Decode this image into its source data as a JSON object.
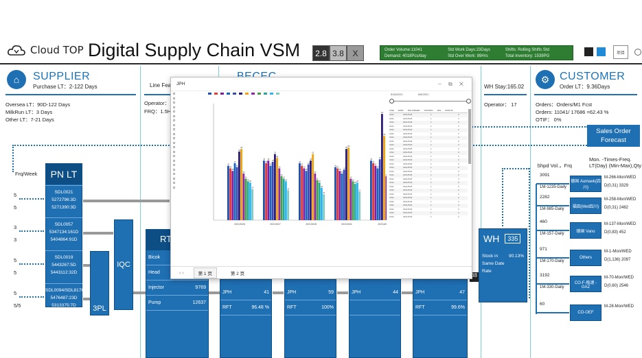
{
  "header": {
    "logo_text": "Cloud TOP",
    "title": "Digital Supply Chain VSM",
    "versions": [
      "2.8",
      "3.8"
    ],
    "close": "X",
    "kpi": [
      [
        "Order Volume:11041",
        "Std Work Days:23Days",
        "Shifts: Rolling Shifts Std"
      ],
      [
        "Demand: 4018Pcs/day",
        "Std Over Work: 89Hrs",
        "Total Inventory: 1539PG"
      ]
    ],
    "menu": "项目"
  },
  "supplier": {
    "title": "SUPPLIER",
    "subtitle": "Purchase LT：2-122 Days",
    "lines": [
      "Oversea LT：90D-122 Days",
      "MilkRun LT：3 Days",
      "Other LT：7-21 Days"
    ]
  },
  "line": {
    "title": "Line Fea",
    "operator": "Operator：",
    "frq": "FRQ：1.5H"
  },
  "becec": {
    "title": "BECEC"
  },
  "wh": {
    "stay": "WH Stay:165.02",
    "operator": "Operator：  17",
    "label": "WH",
    "num": "335",
    "stock": "Stock in Same Date Rate",
    "stock_val": "90.13%"
  },
  "customer": {
    "title": "CUSTOMER",
    "subtitle": "Order LT：9.36Days",
    "lines": [
      "Orders：Orders/M1 Fcst",
      "Orders: 11041/ 17686 =62.43 %",
      "OTIF：  0%"
    ],
    "forecast": "Sales Order Forecast",
    "shpd": "Shpd Vol.，Frq",
    "mon": "Mon. -Times-Freq. LT(Day) (Min-Max),Qty",
    "rows": [
      {
        "vol": "3091",
        "frq": "1M-1235-Daily",
        "box": "德国 Aumaek(四川)",
        "mon": "M-266-Mon/WED",
        "d": "D(0,31) 3329"
      },
      {
        "vol": "2282",
        "frq": "1M-985-Daily",
        "box": "福田(Wet四川)",
        "mon": "M-258-Mon/WED",
        "d": "D(0,31) 2482"
      },
      {
        "vol": "460",
        "frq": "1M-157-Daily",
        "box": "德国 Vano",
        "mon": "M-137-Mon/WED",
        "d": "D(0,83) 452"
      },
      {
        "vol": "971",
        "frq": "1M-170-Daily",
        "box": "Others",
        "mon": "M-1-Mon/WED",
        "d": "D(1,136) 2097"
      },
      {
        "vol": "3192",
        "frq": "1M-330-Daily",
        "box": "CO-F-极速 -GAZ",
        "mon": "M-70-Mon/WED",
        "d": "D(0,60) 2546"
      },
      {
        "vol": "60",
        "frq": "",
        "box": "CO-OEF",
        "mon": "M-28-Mon/WED",
        "d": ""
      }
    ]
  },
  "pnlt": {
    "frq_label": "Frq/Week",
    "title": "PN LT",
    "groups": [
      {
        "frq": "5",
        "frq2": "5",
        "name": "SDL0021",
        "v1": "5272796:3D",
        "v2": "5271390:3D"
      },
      {
        "frq": "3",
        "frq2": "3",
        "name": "SDL0057",
        "v1": "5347134:161D",
        "v2": "5404864:91D"
      },
      {
        "frq": "5",
        "frq2": "5",
        "name": "SDL0019",
        "v1": "5443267:5D",
        "v2": "5443112:32D"
      },
      {
        "frq": "5",
        "frq2": "5/5",
        "name": "SDL0094/SDL8176",
        "v1": "5476487:23D",
        "v2": "5313375:7D"
      }
    ],
    "pl": "3PL",
    "iqc": "IQC"
  },
  "rt": {
    "label": "RT",
    "rows": [
      {
        "k": "Bicok",
        "v": ""
      },
      {
        "k": "Head",
        "v": ""
      },
      {
        "k": "Injector",
        "v": "9769"
      },
      {
        "k": "Pump",
        "v": "12637"
      }
    ]
  },
  "stations": [
    {
      "jph": "JPH",
      "jv": "41",
      "rft": "RFT",
      "rv": "96.48 %"
    },
    {
      "jph": "JPH",
      "jv": "59",
      "rft": "RFT",
      "rv": "100%"
    },
    {
      "jph": "JPH",
      "jv": "44",
      "rft": "",
      "rv": ""
    },
    {
      "jph": "JPH",
      "jv": "47",
      "rft": "RFT",
      "rv": "99.6%"
    }
  ],
  "popup": {
    "title": "JPH",
    "tabs": [
      "第 1 页",
      "第 2 页"
    ],
    "date1": "5/26/2021",
    "date2": "6/8/2021",
    "table_headers": [
      "LINE",
      "DATE",
      "JPH TARGET",
      "STATION",
      "JPH",
      "STATUS"
    ],
    "table_row": [
      "GW1",
      "2021/5/26",
      "",
      "1",
      "",
      "3"
    ]
  },
  "chart_data": {
    "type": "bar",
    "categories": [
      "2021/5/26",
      "2021/5/27",
      "2021/5/28",
      "2021/5/31",
      "2021/6/1"
    ],
    "series": [
      {
        "values": [
          42,
          46,
          44,
          41,
          46
        ],
        "color": "#1e4fb3"
      },
      {
        "values": [
          40,
          44,
          42,
          40,
          44
        ],
        "color": "#e53935"
      },
      {
        "values": [
          38,
          46,
          40,
          38,
          42
        ],
        "color": "#7b1fa2"
      },
      {
        "values": [
          44,
          42,
          38,
          36,
          40
        ],
        "color": "#1565c0"
      },
      {
        "values": [
          41,
          45,
          43,
          39,
          47
        ],
        "color": "#3949ab"
      },
      {
        "values": [
          53,
          51,
          46,
          55,
          82
        ],
        "color": "#2a1a7a"
      },
      {
        "values": [
          55,
          48,
          51,
          56,
          65
        ],
        "color": "#f0a30a"
      },
      {
        "values": [
          36,
          40,
          36,
          32,
          34
        ],
        "color": "#8e24aa"
      },
      {
        "values": [
          32,
          34,
          31,
          30,
          30
        ],
        "color": "#43a047"
      },
      {
        "values": [
          30,
          32,
          29,
          28,
          32
        ],
        "color": "#26a69a"
      },
      {
        "values": [
          29,
          30,
          25,
          29,
          30
        ],
        "color": "#29b6f6"
      },
      {
        "values": [
          24,
          23,
          20,
          22,
          23
        ],
        "color": "#80cbc4"
      }
    ],
    "ylim": [
      0,
      90
    ]
  }
}
